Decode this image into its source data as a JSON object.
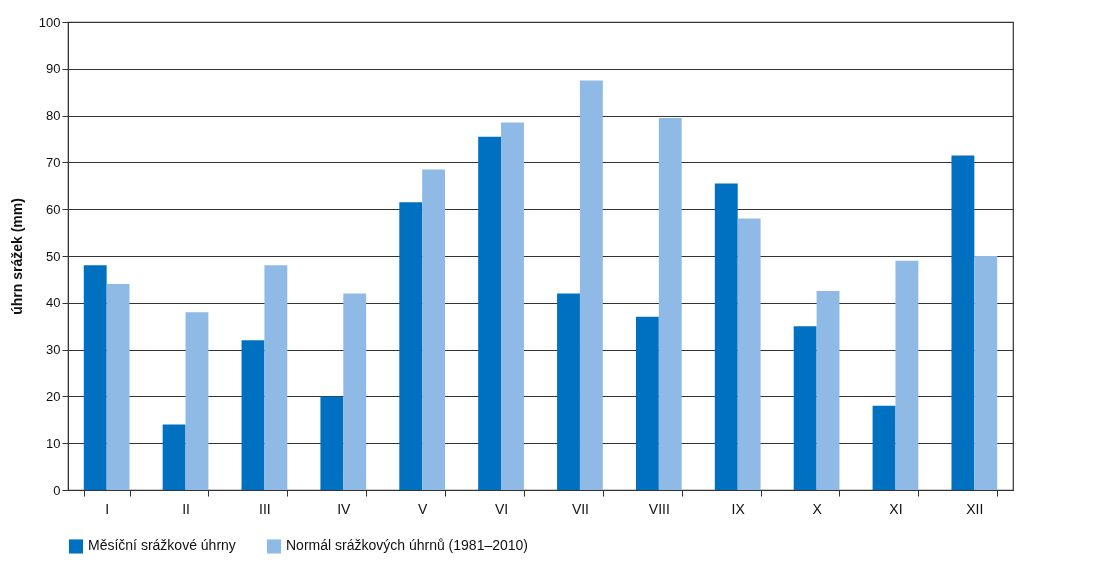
{
  "chart_data": {
    "type": "bar",
    "ylabel": "úhrn srážek (mm)",
    "categories": [
      "I",
      "II",
      "III",
      "IV",
      "V",
      "VI",
      "VII",
      "VIII",
      "IX",
      "X",
      "XI",
      "XII"
    ],
    "series": [
      {
        "name": "Měsíční srážkové úhrny",
        "color": "#0070c0",
        "values": [
          48,
          14,
          32,
          20,
          61.5,
          75.5,
          42,
          37,
          65.5,
          35,
          18,
          71.5
        ]
      },
      {
        "name": "Normál srážkových úhrnů (1981–2010)",
        "color": "#8fbae5",
        "values": [
          44,
          38,
          48,
          42,
          68.5,
          78.5,
          87.5,
          79.5,
          58,
          42.5,
          49,
          50
        ]
      }
    ],
    "ylim": [
      0,
      100
    ],
    "yticks": [
      0,
      10,
      20,
      30,
      40,
      50,
      60,
      70,
      80,
      90,
      100
    ],
    "grid": "y",
    "legend": "bottom"
  }
}
